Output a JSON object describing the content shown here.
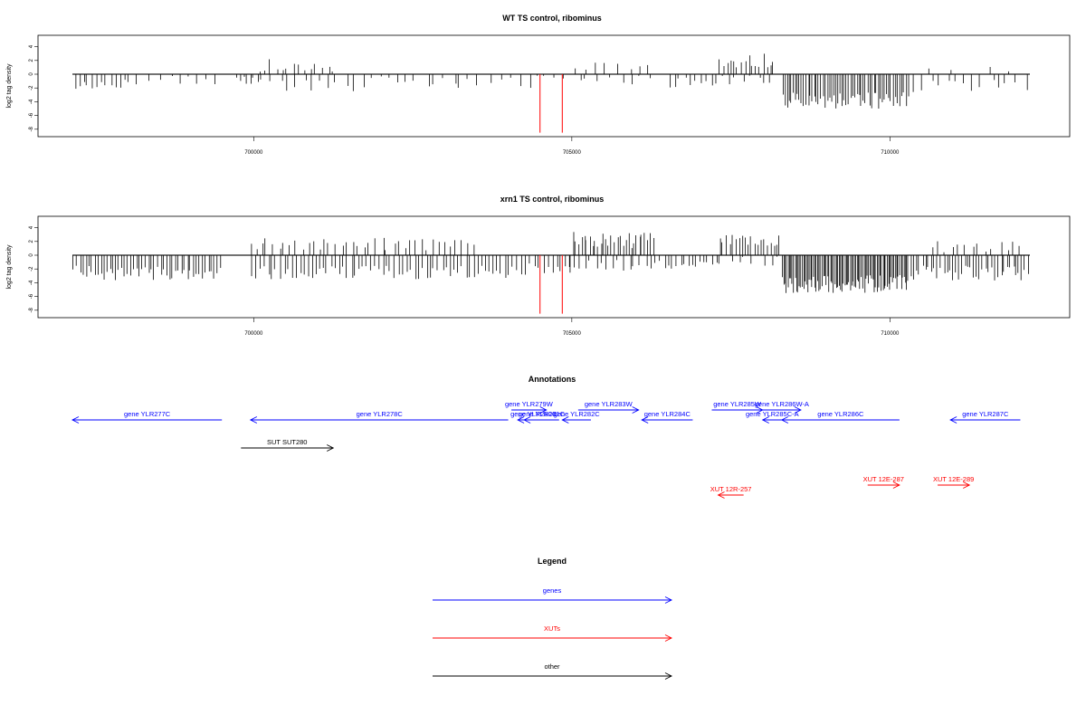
{
  "chart_data": [
    {
      "type": "bar",
      "title": "WT TS control, ribominus",
      "ylabel": "log2 tag density",
      "xlim": [
        697100,
        712800
      ],
      "ylim": [
        -9,
        6
      ],
      "x_ticks": [
        700000,
        705000,
        710000
      ],
      "x_tick_labels": [
        "700000",
        "705000",
        "710000"
      ],
      "y_ticks": [
        -8,
        -6,
        -4,
        -2,
        0,
        2,
        4
      ],
      "y_tick_labels": [
        "-8",
        "-6",
        "-4",
        "-2",
        "0",
        "2",
        "4"
      ],
      "baseline": 0,
      "highlight_color": "#ff0000",
      "bar_color": "#000000",
      "series": [
        {
          "values": [
            {
              "start": 697150,
              "end": 698000,
              "mean": -1.6,
              "spread": 1.0,
              "density": 12
            },
            {
              "start": 698000,
              "end": 699500,
              "mean": -1.0,
              "spread": 0.8,
              "density": 10
            },
            {
              "start": 699700,
              "end": 700150,
              "mean": -0.8,
              "spread": 0.6,
              "density": 8
            },
            {
              "start": 700050,
              "end": 701300,
              "mean": 1.2,
              "spread": 1.0,
              "density": 14
            },
            {
              "start": 700200,
              "end": 701800,
              "mean": -1.5,
              "spread": 1.0,
              "density": 12
            },
            {
              "start": 701800,
              "end": 703200,
              "mean": -1.0,
              "spread": 0.8,
              "density": 10
            },
            {
              "start": 703200,
              "end": 704400,
              "mean": -1.2,
              "spread": 0.8,
              "density": 8
            },
            {
              "start": 704400,
              "end": 705000,
              "mean": -0.6,
              "spread": 0.4,
              "density": 4
            },
            {
              "start": 705000,
              "end": 706300,
              "mean": 1.0,
              "spread": 0.7,
              "density": 8
            },
            {
              "start": 705000,
              "end": 706400,
              "mean": -1.0,
              "spread": 0.8,
              "density": 8
            },
            {
              "start": 706500,
              "end": 707300,
              "mean": -1.3,
              "spread": 0.8,
              "density": 10
            },
            {
              "start": 707300,
              "end": 708200,
              "mean": 2.0,
              "spread": 1.0,
              "density": 16
            },
            {
              "start": 707300,
              "end": 708200,
              "mean": -1.0,
              "spread": 0.8,
              "density": 8
            },
            {
              "start": 708300,
              "end": 710300,
              "mean": -3.8,
              "spread": 1.2,
              "density": 60
            },
            {
              "start": 710300,
              "end": 712200,
              "mean": -1.6,
              "spread": 1.0,
              "density": 14
            },
            {
              "start": 710600,
              "end": 712000,
              "mean": 0.5,
              "spread": 0.6,
              "density": 4
            }
          ],
          "highlights": [
            {
              "x": 704500,
              "y": -8.5
            },
            {
              "x": 704850,
              "y": -8.5
            }
          ]
        }
      ]
    },
    {
      "type": "bar",
      "title": "xrn1 TS control, ribominus",
      "ylabel": "log2 tag density",
      "xlim": [
        697100,
        712800
      ],
      "ylim": [
        -9,
        6
      ],
      "x_ticks": [
        700000,
        705000,
        710000
      ],
      "x_tick_labels": [
        "700000",
        "705000",
        "710000"
      ],
      "y_ticks": [
        -8,
        -6,
        -4,
        -2,
        0,
        2,
        4
      ],
      "y_tick_labels": [
        "-8",
        "-6",
        "-4",
        "-2",
        "0",
        "2",
        "4"
      ],
      "baseline": 0,
      "highlight_color": "#ff0000",
      "bar_color": "#000000",
      "series": [
        {
          "values": [
            {
              "start": 697150,
              "end": 699500,
              "mean": -2.6,
              "spread": 1.1,
              "density": 50
            },
            {
              "start": 699900,
              "end": 703500,
              "mean": 1.6,
              "spread": 1.0,
              "density": 40
            },
            {
              "start": 699950,
              "end": 704300,
              "mean": -2.5,
              "spread": 1.0,
              "density": 70
            },
            {
              "start": 704300,
              "end": 705000,
              "mean": -1.8,
              "spread": 0.8,
              "density": 10
            },
            {
              "start": 705000,
              "end": 706300,
              "mean": 2.2,
              "spread": 1.2,
              "density": 30
            },
            {
              "start": 704900,
              "end": 706300,
              "mean": -1.5,
              "spread": 0.8,
              "density": 16
            },
            {
              "start": 706300,
              "end": 707300,
              "mean": -1.4,
              "spread": 0.8,
              "density": 16
            },
            {
              "start": 707300,
              "end": 708300,
              "mean": 2.0,
              "spread": 1.0,
              "density": 20
            },
            {
              "start": 707300,
              "end": 708300,
              "mean": -1.0,
              "spread": 0.8,
              "density": 8
            },
            {
              "start": 708300,
              "end": 710300,
              "mean": -4.2,
              "spread": 1.3,
              "density": 90
            },
            {
              "start": 710300,
              "end": 712200,
              "mean": -2.6,
              "spread": 1.1,
              "density": 40
            },
            {
              "start": 710600,
              "end": 712100,
              "mean": 1.2,
              "spread": 0.9,
              "density": 14
            }
          ],
          "highlights": [
            {
              "x": 704500,
              "y": -8.5
            },
            {
              "x": 704850,
              "y": -8.5
            }
          ]
        }
      ]
    }
  ],
  "annotations": {
    "title": "Annotations",
    "features": [
      {
        "label": "gene YLR277C",
        "start": 697150,
        "end": 699500,
        "strand": "-",
        "color": "#0000ff",
        "row": 1
      },
      {
        "label": "gene YLR278C",
        "start": 699950,
        "end": 704000,
        "strand": "-",
        "color": "#0000ff",
        "row": 1
      },
      {
        "label": "gene YLR279W",
        "start": 704050,
        "end": 704600,
        "strand": "+",
        "color": "#0000ff",
        "row": 0
      },
      {
        "label": "gene YLR280C",
        "start": 704150,
        "end": 704650,
        "strand": "-",
        "color": "#0000ff",
        "row": 1
      },
      {
        "label": "gene YLR281C",
        "start": 704250,
        "end": 704800,
        "strand": "-",
        "color": "#0000ff",
        "row": 1
      },
      {
        "label": "gene YLR282C",
        "start": 704850,
        "end": 705300,
        "strand": "-",
        "color": "#0000ff",
        "row": 1
      },
      {
        "label": "gene YLR283W",
        "start": 705100,
        "end": 706050,
        "strand": "+",
        "color": "#0000ff",
        "row": 0
      },
      {
        "label": "gene YLR284C",
        "start": 706100,
        "end": 706900,
        "strand": "-",
        "color": "#0000ff",
        "row": 1
      },
      {
        "label": "gene YLR285W",
        "start": 707200,
        "end": 708000,
        "strand": "+",
        "color": "#0000ff",
        "row": 0
      },
      {
        "label": "gene YLR286W-A",
        "start": 708000,
        "end": 708600,
        "strand": "+",
        "color": "#0000ff",
        "row": 0
      },
      {
        "label": "gene YLR285C-A",
        "start": 708000,
        "end": 708300,
        "strand": "-",
        "color": "#0000ff",
        "row": 1
      },
      {
        "label": "gene YLR286C",
        "start": 708300,
        "end": 710150,
        "strand": "-",
        "color": "#0000ff",
        "row": 1
      },
      {
        "label": "gene YLR287C",
        "start": 710950,
        "end": 712050,
        "strand": "-",
        "color": "#0000ff",
        "row": 1
      },
      {
        "label": "SUT SUT280",
        "start": 699800,
        "end": 701250,
        "strand": "+",
        "color": "#000000",
        "row": 2
      },
      {
        "label": "XUT 12E-287",
        "start": 709650,
        "end": 710150,
        "strand": "+",
        "color": "#ff0000",
        "row": 3
      },
      {
        "label": "XUT 12E-289",
        "start": 710750,
        "end": 711250,
        "strand": "+",
        "color": "#ff0000",
        "row": 3
      },
      {
        "label": "XUT 12R-257",
        "start": 707300,
        "end": 707700,
        "strand": "-",
        "color": "#ff0000",
        "row": 4
      }
    ]
  },
  "legend": {
    "title": "Legend",
    "items": [
      {
        "label": "genes",
        "color": "#0000ff"
      },
      {
        "label": "XUTs",
        "color": "#ff0000"
      },
      {
        "label": "other",
        "color": "#000000"
      }
    ]
  }
}
